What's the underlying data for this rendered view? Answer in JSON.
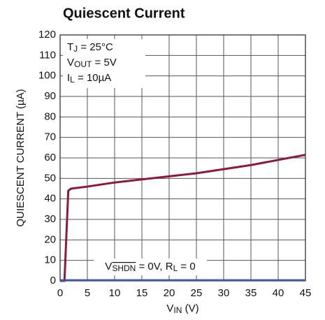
{
  "chart_data": {
    "type": "line",
    "title": "Quiescent Current",
    "x_label": [
      {
        "text": "V"
      },
      {
        "sub": "IN"
      },
      {
        "text": " (V)"
      }
    ],
    "y_label": "QUIESCENT CURRENT (µA)",
    "xlim": [
      0,
      45
    ],
    "xticks": [
      0,
      5,
      10,
      15,
      20,
      25,
      30,
      35,
      40,
      45
    ],
    "ylim": [
      0,
      120
    ],
    "yticks": [
      0,
      10,
      20,
      30,
      40,
      50,
      60,
      70,
      80,
      90,
      100,
      110,
      120
    ],
    "grid": true,
    "series": [
      {
        "color": "#8b1a3c",
        "x": [
          0,
          0.8,
          1.5,
          2,
          5,
          10,
          15,
          20,
          25,
          30,
          35,
          40,
          45
        ],
        "values": [
          0,
          0,
          44,
          45,
          46,
          48,
          49.5,
          51,
          52.5,
          54.5,
          56.5,
          59,
          61.5
        ]
      },
      {
        "color": "#3a5aa8",
        "x": [
          0,
          45
        ],
        "values": [
          0.3,
          0.3
        ]
      }
    ],
    "annotations": [
      [
        {
          "text": "T"
        },
        {
          "sub": "J"
        },
        {
          "text": " = 25°C"
        }
      ],
      [
        {
          "text": "V"
        },
        {
          "sub": "OUT"
        },
        {
          "text": " = 5V"
        }
      ],
      [
        {
          "text": "I"
        },
        {
          "sub": "L"
        },
        {
          "text": " = 10µA"
        }
      ],
      [
        {
          "text": "V"
        },
        {
          "sub_overline": "SHDN"
        },
        {
          "text": " = 0V, R"
        },
        {
          "sub": "L"
        },
        {
          "text": " = 0"
        }
      ]
    ]
  }
}
